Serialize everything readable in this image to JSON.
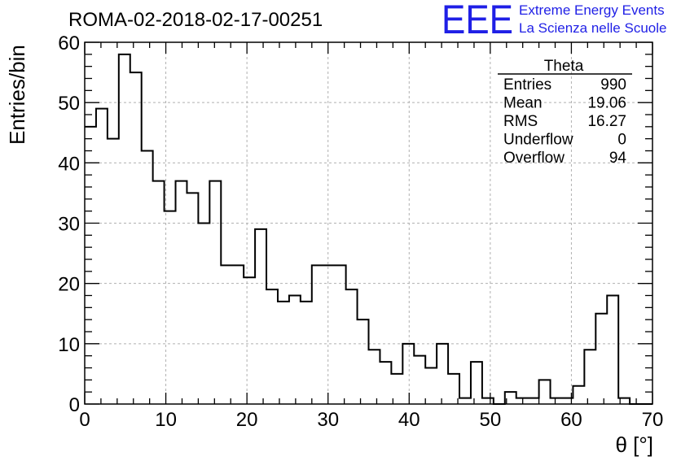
{
  "chart_data": {
    "type": "histogram",
    "title": "ROMA-02-2018-02-17-00251",
    "xlabel": "θ [°]",
    "ylabel": "Entries/bin",
    "xlim": [
      0,
      70
    ],
    "ylim": [
      0,
      60
    ],
    "xticks": [
      0,
      10,
      20,
      30,
      40,
      50,
      60,
      70
    ],
    "yticks": [
      0,
      10,
      20,
      30,
      40,
      50,
      60
    ],
    "grid": true,
    "bin_width": 1.4,
    "bin_edges_start": 0,
    "values": [
      46,
      49,
      44,
      58,
      55,
      42,
      37,
      32,
      37,
      35,
      30,
      37,
      23,
      23,
      21,
      29,
      19,
      17,
      18,
      17,
      23,
      23,
      23,
      19,
      14,
      9,
      7,
      5,
      10,
      8,
      6,
      10,
      5,
      1,
      7,
      1,
      0,
      2,
      1,
      1,
      4,
      1,
      1,
      3,
      9,
      15,
      18,
      1,
      0,
      0
    ],
    "stats_box": {
      "title": "Theta",
      "rows": [
        {
          "label": "Entries",
          "value": "990"
        },
        {
          "label": "Mean",
          "value": "19.06"
        },
        {
          "label": "RMS",
          "value": "16.27"
        },
        {
          "label": "Underflow",
          "value": "0"
        },
        {
          "label": "Overflow",
          "value": "94"
        }
      ]
    },
    "logo": {
      "main": "EEE",
      "line1": "Extreme Energy Events",
      "line2": "La Scienza nelle Scuole"
    }
  }
}
